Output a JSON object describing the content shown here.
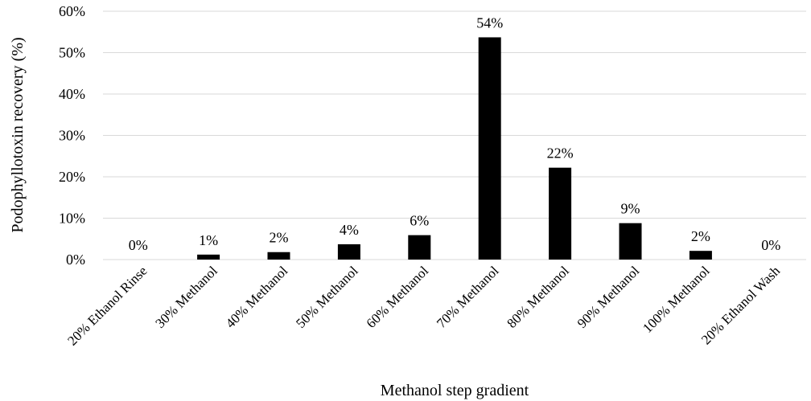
{
  "chart_data": {
    "type": "bar",
    "title": "",
    "xlabel": "Methanol step gradient",
    "ylabel": "Podophyllotoxin recovery (%)",
    "categories": [
      "20% Ethanol Rinse",
      "30% Methanol",
      "40% Methanol",
      "50% Methanol",
      "60% Methanol",
      "70% Methanol",
      "80% Methanol",
      "90% Methanol",
      "100% Methanol",
      "20% Ethanol Wash"
    ],
    "values": [
      0,
      1.2,
      1.8,
      3.7,
      5.9,
      53.7,
      22.2,
      8.8,
      2.1,
      0
    ],
    "data_labels": [
      "0%",
      "1%",
      "2%",
      "4%",
      "6%",
      "54%",
      "22%",
      "9%",
      "2%",
      "0%"
    ],
    "ylim": [
      0,
      60
    ],
    "yticks": [
      0,
      10,
      20,
      30,
      40,
      50,
      60
    ],
    "ytick_labels": [
      "0%",
      "10%",
      "20%",
      "30%",
      "40%",
      "50%",
      "60%"
    ],
    "grid": true,
    "legend": "none",
    "colors": {
      "bar": "#000000",
      "grid": "#d9d9d9",
      "text": "#000000"
    }
  }
}
